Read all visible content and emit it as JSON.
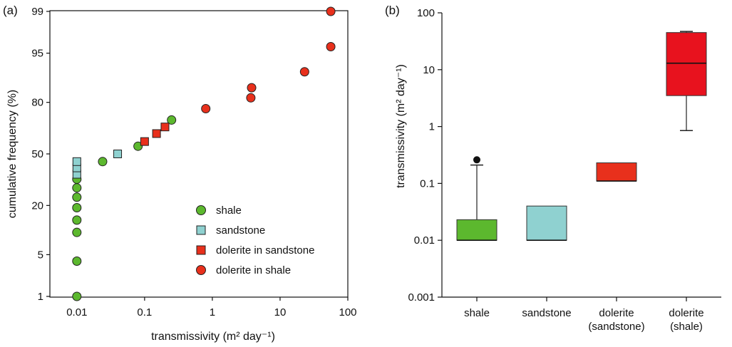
{
  "chart_data": [
    {
      "panel_label": "(a)",
      "type": "scatter",
      "xlabel": "transmissivity (m² day⁻¹)",
      "ylabel": "cumulative frequency (%)",
      "x_scale": "log",
      "y_scale": "probability",
      "xlim": [
        0.004,
        100
      ],
      "ylim": [
        1,
        99
      ],
      "x_ticks": [
        "0.01",
        "0.1",
        "1",
        "10",
        "100"
      ],
      "y_ticks": [
        "1",
        "5",
        "20",
        "50",
        "80",
        "95",
        "99"
      ],
      "legend_position": "bottom-right",
      "series": [
        {
          "name": "shale",
          "marker": "circle",
          "color": "#5cb82e",
          "points": [
            [
              0.01,
              1
            ],
            [
              0.01,
              4
            ],
            [
              0.01,
              10
            ],
            [
              0.01,
              14
            ],
            [
              0.01,
              19
            ],
            [
              0.01,
              24
            ],
            [
              0.01,
              29
            ],
            [
              0.01,
              34
            ],
            [
              0.024,
              45
            ],
            [
              0.08,
              55
            ],
            [
              0.25,
              71
            ]
          ]
        },
        {
          "name": "sandstone",
          "marker": "square",
          "color": "#8fd1d0",
          "points": [
            [
              0.01,
              37
            ],
            [
              0.01,
              41
            ],
            [
              0.01,
              45
            ],
            [
              0.04,
              50
            ]
          ]
        },
        {
          "name": "dolerite in sandstone",
          "marker": "square",
          "color": "#e8301c",
          "points": [
            [
              0.1,
              58
            ],
            [
              0.15,
              63
            ],
            [
              0.2,
              67
            ]
          ]
        },
        {
          "name": "dolerite in shale",
          "marker": "circle",
          "color": "#e8301c",
          "points": [
            [
              0.8,
              77
            ],
            [
              3.7,
              82
            ],
            [
              3.8,
              86
            ],
            [
              23,
              91
            ],
            [
              56,
              96
            ],
            [
              56,
              99
            ]
          ]
        }
      ]
    },
    {
      "panel_label": "(b)",
      "type": "box",
      "ylabel": "transmissivity (m² day⁻¹)",
      "y_scale": "log",
      "ylim": [
        0.001,
        100
      ],
      "y_ticks": [
        "0.001",
        "0.01",
        "0.1",
        "1",
        "10",
        "100"
      ],
      "categories": [
        "shale",
        "sandstone",
        "dolerite (sandstone)",
        "dolerite (shale)"
      ],
      "category_lines": [
        [
          "shale"
        ],
        [
          "sandstone"
        ],
        [
          "dolerite",
          "(sandstone)"
        ],
        [
          "dolerite",
          "(shale)"
        ]
      ],
      "boxes": [
        {
          "q1": 0.01,
          "median": 0.01,
          "q3": 0.023,
          "whisker_low": 0.01,
          "whisker_high": 0.21,
          "outliers": [
            0.26
          ],
          "color": "#5cb82e"
        },
        {
          "q1": 0.01,
          "median": 0.01,
          "q3": 0.04,
          "whisker_low": 0.01,
          "whisker_high": 0.04,
          "outliers": [],
          "color": "#8fd1d0"
        },
        {
          "q1": 0.11,
          "median": 0.11,
          "q3": 0.23,
          "whisker_low": 0.11,
          "whisker_high": 0.23,
          "outliers": [],
          "color": "#e8301c"
        },
        {
          "q1": 3.5,
          "median": 13,
          "q3": 45,
          "whisker_low": 0.85,
          "whisker_high": 47,
          "outliers": [],
          "color": "#e8121e"
        }
      ]
    }
  ]
}
